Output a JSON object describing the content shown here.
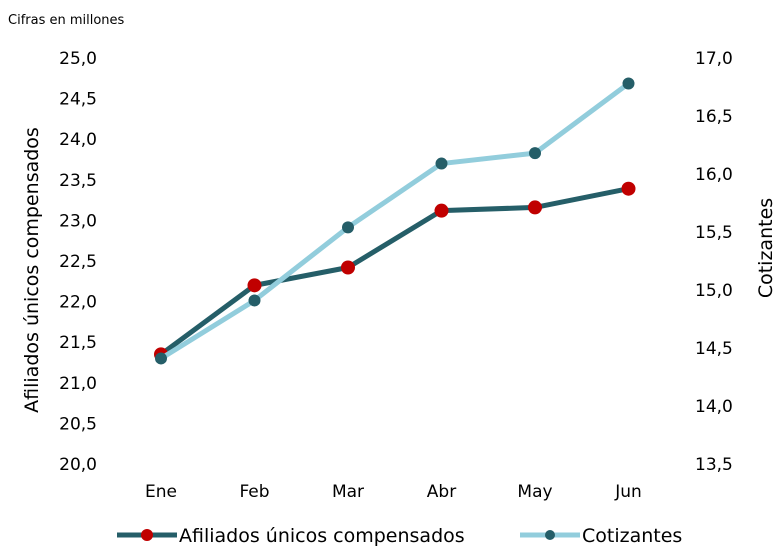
{
  "note": "Cifras en millones",
  "chart_data": {
    "type": "line",
    "categories": [
      "Ene",
      "Feb",
      "Mar",
      "Abr",
      "May",
      "Jun"
    ],
    "y_left": {
      "label": "Afiliados únicos compensados",
      "range": [
        20.0,
        25.0
      ],
      "ticks": [
        "20,0",
        "20,5",
        "21,0",
        "21,5",
        "22,0",
        "22,5",
        "23,0",
        "23,5",
        "24,0",
        "24,5",
        "25,0"
      ]
    },
    "y_right": {
      "label": "Cotizantes",
      "range": [
        13.5,
        17.0
      ],
      "ticks": [
        "13,5",
        "14,0",
        "14,5",
        "15,0",
        "15,5",
        "16,0",
        "16,5",
        "17,0"
      ]
    },
    "series": [
      {
        "name": "Afiliados únicos compensados",
        "axis": "left",
        "values": [
          21.35,
          22.2,
          22.42,
          23.12,
          23.16,
          23.39
        ],
        "line_color": "#255e68",
        "marker_color": "#c00000"
      },
      {
        "name": "Cotizantes",
        "axis": "right",
        "values": [
          14.41,
          14.91,
          15.54,
          16.09,
          16.18,
          16.78
        ],
        "line_color": "#92cddc",
        "marker_color": "#255e68"
      }
    ],
    "grid": false,
    "legend_position": "bottom"
  }
}
